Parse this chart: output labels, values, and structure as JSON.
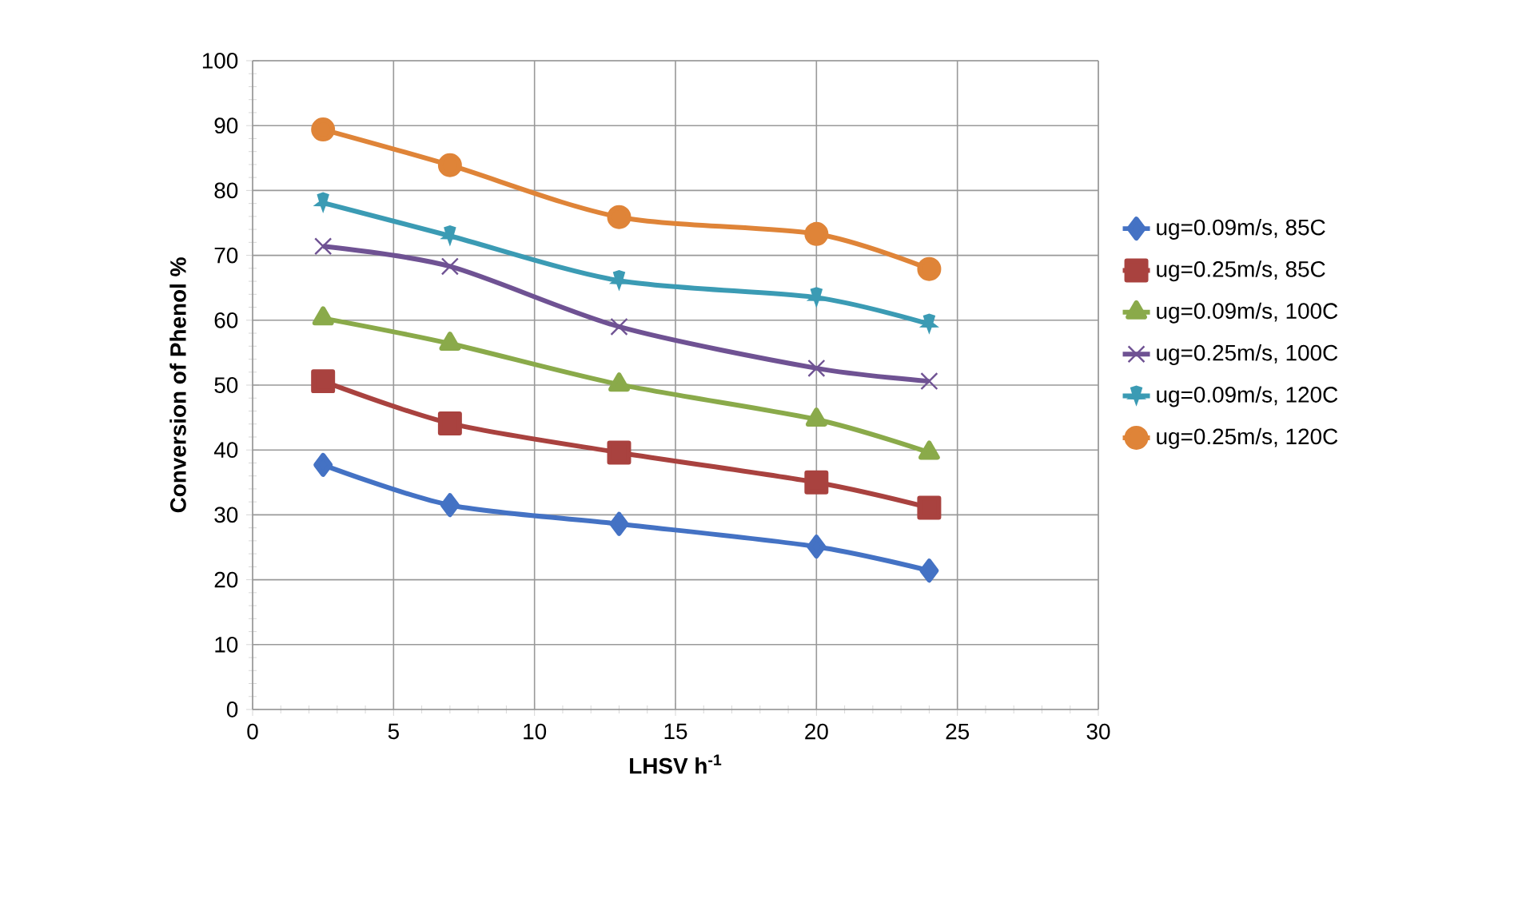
{
  "chart_data": {
    "type": "line",
    "xlabel": "LHSV h$^{-1}$",
    "ylabel": "Conversion of Phenol %",
    "x": [
      2.5,
      7,
      13,
      20,
      24
    ],
    "series": [
      {
        "name": "ug=0.09m/s, 85C",
        "color": "#4472c4",
        "marker": "diamond",
        "values": [
          37.7,
          31.5,
          28.6,
          25.1,
          21.4
        ]
      },
      {
        "name": "ug=0.25m/s, 85C",
        "color": "#a9423f",
        "marker": "square",
        "values": [
          50.6,
          44.1,
          39.6,
          35.0,
          31.1
        ]
      },
      {
        "name": "ug=0.09m/s, 100C",
        "color": "#8aaa4a",
        "marker": "triangle",
        "values": [
          60.3,
          56.4,
          50.1,
          44.7,
          39.6
        ]
      },
      {
        "name": "ug=0.25m/s, 100C",
        "color": "#6f5293",
        "marker": "cross",
        "values": [
          71.4,
          68.3,
          59.0,
          52.6,
          50.6
        ]
      },
      {
        "name": "ug=0.09m/s, 120C",
        "color": "#3b9bb4",
        "marker": "star",
        "values": [
          78.1,
          73.0,
          66.1,
          63.5,
          59.4
        ]
      },
      {
        "name": "ug=0.25m/s, 120C",
        "color": "#df8438",
        "marker": "circle",
        "values": [
          89.4,
          83.9,
          75.9,
          73.3,
          67.9
        ]
      }
    ],
    "xlim": [
      0,
      30
    ],
    "xticks": [
      0,
      5,
      10,
      15,
      20,
      25,
      30
    ],
    "ylim": [
      0,
      100
    ],
    "yticks": [
      0,
      10,
      20,
      30,
      40,
      50,
      60,
      70,
      80,
      90,
      100
    ],
    "grid": true,
    "legend": "right"
  }
}
